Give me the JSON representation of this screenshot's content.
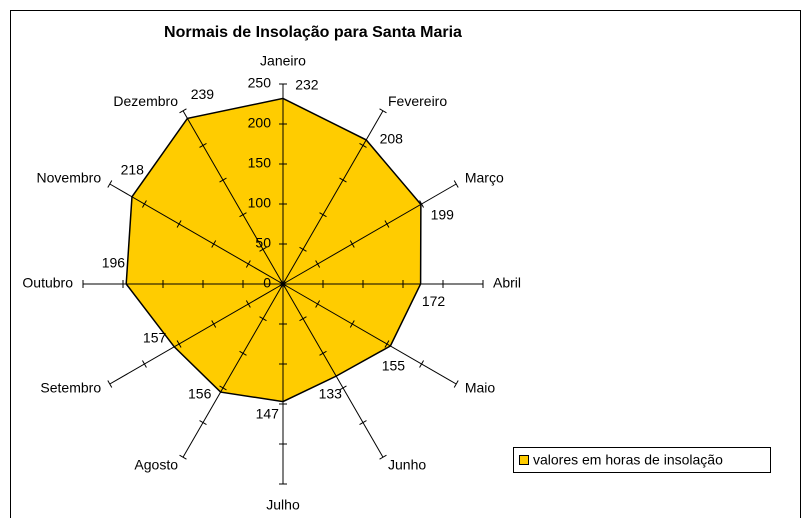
{
  "chart_data": {
    "type": "radar",
    "title": "Normais de Insolação para Santa Maria",
    "categories": [
      "Janeiro",
      "Fevereiro",
      "Março",
      "Abril",
      "Maio",
      "Junho",
      "Julho",
      "Agosto",
      "Setembro",
      "Outubro",
      "Novembro",
      "Dezembro"
    ],
    "series": [
      {
        "name": "valores em horas de insolação",
        "color": "#FFCC00",
        "values": [
          232,
          208,
          199,
          172,
          155,
          133,
          147,
          156,
          157,
          196,
          218,
          239
        ]
      }
    ],
    "rlim": [
      0,
      250
    ],
    "rticks": [
      0,
      50,
      100,
      150,
      200,
      250
    ],
    "legend": "right"
  }
}
